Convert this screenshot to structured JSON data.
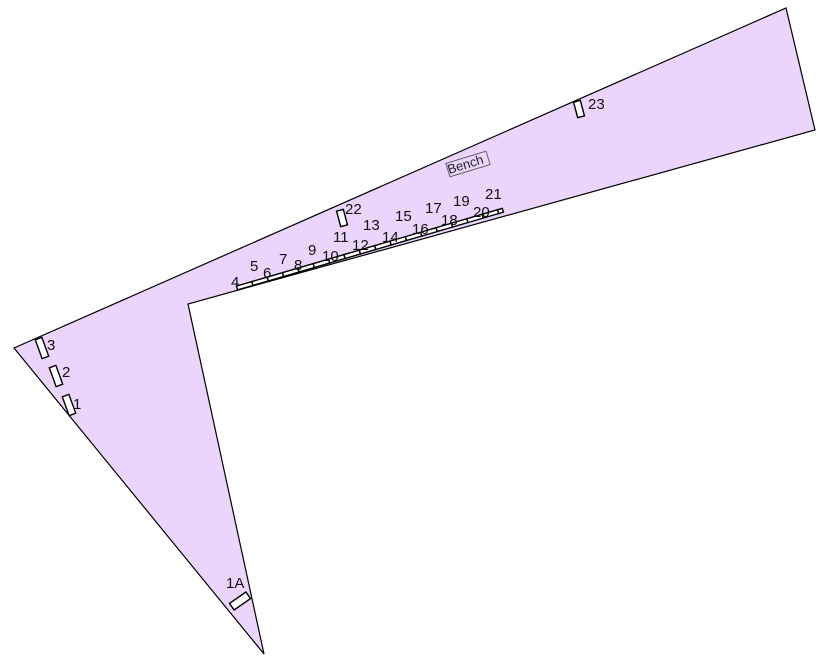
{
  "map": {
    "colors": {
      "area_fill": "#ecd5fc",
      "outline": "#000000",
      "background": "#ffffff"
    },
    "bench_label": "Bench",
    "lots": [
      {
        "id": "1A",
        "label": "1A"
      },
      {
        "id": "1",
        "label": "1"
      },
      {
        "id": "2",
        "label": "2"
      },
      {
        "id": "3",
        "label": "3"
      },
      {
        "id": "4",
        "label": "4"
      },
      {
        "id": "5",
        "label": "5"
      },
      {
        "id": "6",
        "label": "6"
      },
      {
        "id": "7",
        "label": "7"
      },
      {
        "id": "8",
        "label": "8"
      },
      {
        "id": "9",
        "label": "9"
      },
      {
        "id": "10",
        "label": "10"
      },
      {
        "id": "11",
        "label": "11"
      },
      {
        "id": "12",
        "label": "12"
      },
      {
        "id": "13",
        "label": "13"
      },
      {
        "id": "14",
        "label": "14"
      },
      {
        "id": "15",
        "label": "15"
      },
      {
        "id": "16",
        "label": "16"
      },
      {
        "id": "17",
        "label": "17"
      },
      {
        "id": "18",
        "label": "18"
      },
      {
        "id": "19",
        "label": "19"
      },
      {
        "id": "20",
        "label": "20"
      },
      {
        "id": "21",
        "label": "21"
      },
      {
        "id": "22",
        "label": "22"
      },
      {
        "id": "23",
        "label": "23"
      }
    ]
  }
}
